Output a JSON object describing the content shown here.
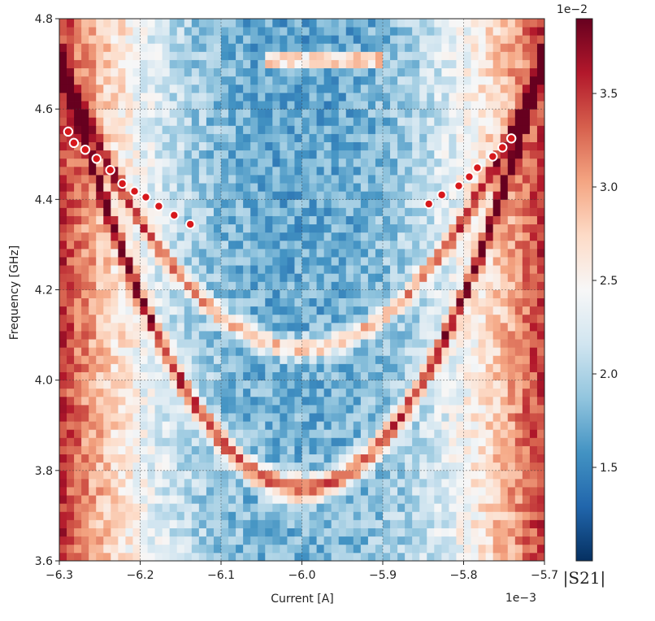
{
  "chart_data": {
    "type": "heatmap",
    "xlabel": "Current [A]",
    "ylabel": "Frequency [GHz]",
    "x_offset_text": "1e−3",
    "xlim": [
      -6.3,
      -5.7
    ],
    "ylim": [
      3.6,
      4.8
    ],
    "x_ticks": [
      -6.3,
      -6.2,
      -6.1,
      -6.0,
      -5.9,
      -5.8,
      -5.7
    ],
    "x_tick_labels": [
      "−6.3",
      "−6.2",
      "−6.1",
      "−6.0",
      "−5.9",
      "−5.8",
      "−5.7"
    ],
    "y_ticks": [
      3.6,
      3.8,
      4.0,
      4.2,
      4.4,
      4.6,
      4.8
    ],
    "y_tick_labels": [
      "3.6",
      "3.8",
      "4.0",
      "4.2",
      "4.4",
      "4.6",
      "4.8"
    ],
    "grid": true,
    "colormap": "RdBu_r",
    "colorbar": {
      "label": "|S21|",
      "offset_text": "1e−2",
      "range": [
        1.0,
        3.9
      ],
      "ticks": [
        1.5,
        2.0,
        2.5,
        3.0,
        3.5
      ],
      "tick_labels": [
        "1.5",
        "2.0",
        "2.5",
        "3.0",
        "3.5"
      ]
    },
    "grid_cells": {
      "nx": 66,
      "ny": 66
    },
    "resonances": [
      {
        "vertex_x": -6.0,
        "vertex_y": 4.07,
        "x_range": [
          -6.3,
          -5.7
        ],
        "y_at_edges": 4.71,
        "style": "upper branch"
      },
      {
        "vertex_x": -6.0,
        "vertex_y": 3.76,
        "x_range": [
          -6.3,
          -5.7
        ],
        "y_at_edges": 4.72,
        "style": "lower branch"
      }
    ],
    "marked_points": [
      {
        "x": -6.289,
        "y": 4.55
      },
      {
        "x": -6.282,
        "y": 4.525
      },
      {
        "x": -6.268,
        "y": 4.51
      },
      {
        "x": -6.254,
        "y": 4.49
      },
      {
        "x": -6.237,
        "y": 4.465
      },
      {
        "x": -6.222,
        "y": 4.435
      },
      {
        "x": -6.207,
        "y": 4.418
      },
      {
        "x": -6.193,
        "y": 4.405
      },
      {
        "x": -6.177,
        "y": 4.385
      },
      {
        "x": -6.158,
        "y": 4.365
      },
      {
        "x": -6.138,
        "y": 4.345
      },
      {
        "x": -5.843,
        "y": 4.39
      },
      {
        "x": -5.827,
        "y": 4.41
      },
      {
        "x": -5.806,
        "y": 4.43
      },
      {
        "x": -5.793,
        "y": 4.45
      },
      {
        "x": -5.783,
        "y": 4.47
      },
      {
        "x": -5.764,
        "y": 4.495
      },
      {
        "x": -5.752,
        "y": 4.515
      },
      {
        "x": -5.741,
        "y": 4.535
      }
    ],
    "marker_color": "#d7191c"
  }
}
